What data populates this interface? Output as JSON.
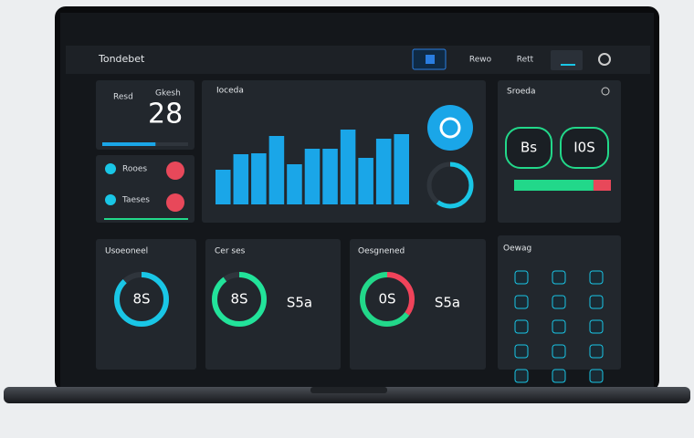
{
  "header": {
    "title": "Tondebet",
    "buttons": [
      "Rewo",
      "Rett"
    ]
  },
  "stat_card": {
    "label": "Resd",
    "sublabel": "Gkesh",
    "value": "28",
    "progress": 62
  },
  "alerts": [
    "Rooes",
    "Taeses"
  ],
  "bar_panel": {
    "title": "Ioceda",
    "values": [
      38,
      55,
      56,
      75,
      44,
      61,
      61,
      82,
      51,
      72,
      77
    ],
    "ylim": [
      0,
      100
    ],
    "color": "#1aa6e8",
    "gauge": 60
  },
  "status_panel": {
    "title": "Sroeda",
    "left": "Bs",
    "right": "I0S",
    "progress": [
      82,
      18
    ]
  },
  "rings": [
    {
      "title": "Usoeoneel",
      "value": "8S",
      "segments": [
        {
          "value": 88,
          "color": "#19c6e6"
        }
      ]
    },
    {
      "title": "Cer ses",
      "value": "8S",
      "caption": "S5a",
      "segments": [
        {
          "value": 90,
          "color": "#22e39a"
        }
      ]
    },
    {
      "title": "Oesgnened",
      "value": "0S",
      "caption": "S5a",
      "segments": [
        {
          "value": 35,
          "color": "#f0435a"
        },
        {
          "value": 65,
          "color": "#22d88a"
        }
      ]
    }
  ],
  "apps_panel": {
    "title": "Oewag"
  }
}
